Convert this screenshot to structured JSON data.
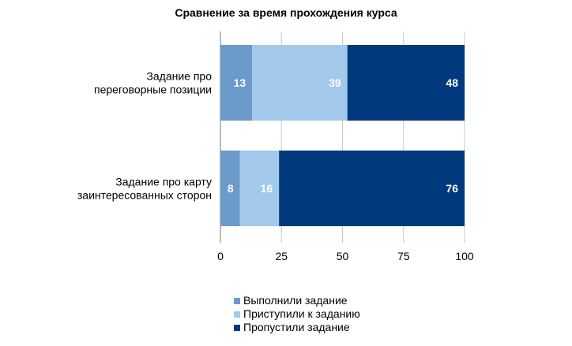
{
  "chart_data": {
    "type": "bar",
    "orientation": "horizontal",
    "stacked": true,
    "title": "Сравнение за время прохождения курса",
    "categories": [
      [
        "Задание про",
        "переговорные позиции"
      ],
      [
        "Задание про карту",
        "заинтересованных сторон"
      ]
    ],
    "series": [
      {
        "name": "Выполнили задание",
        "values": [
          13,
          8
        ],
        "color": "#6b9acb"
      },
      {
        "name": "Приступили к заданию",
        "values": [
          39,
          16
        ],
        "color": "#a3c9ea"
      },
      {
        "name": "Пропустили задание",
        "values": [
          48,
          76
        ],
        "color": "#003a7d"
      }
    ],
    "xlim": [
      0,
      100
    ],
    "xticks": [
      0,
      25,
      50,
      75,
      100
    ],
    "xtick_labels": [
      "0",
      "25",
      "50",
      "75",
      "100"
    ],
    "grid": true,
    "legend": "bottom"
  }
}
